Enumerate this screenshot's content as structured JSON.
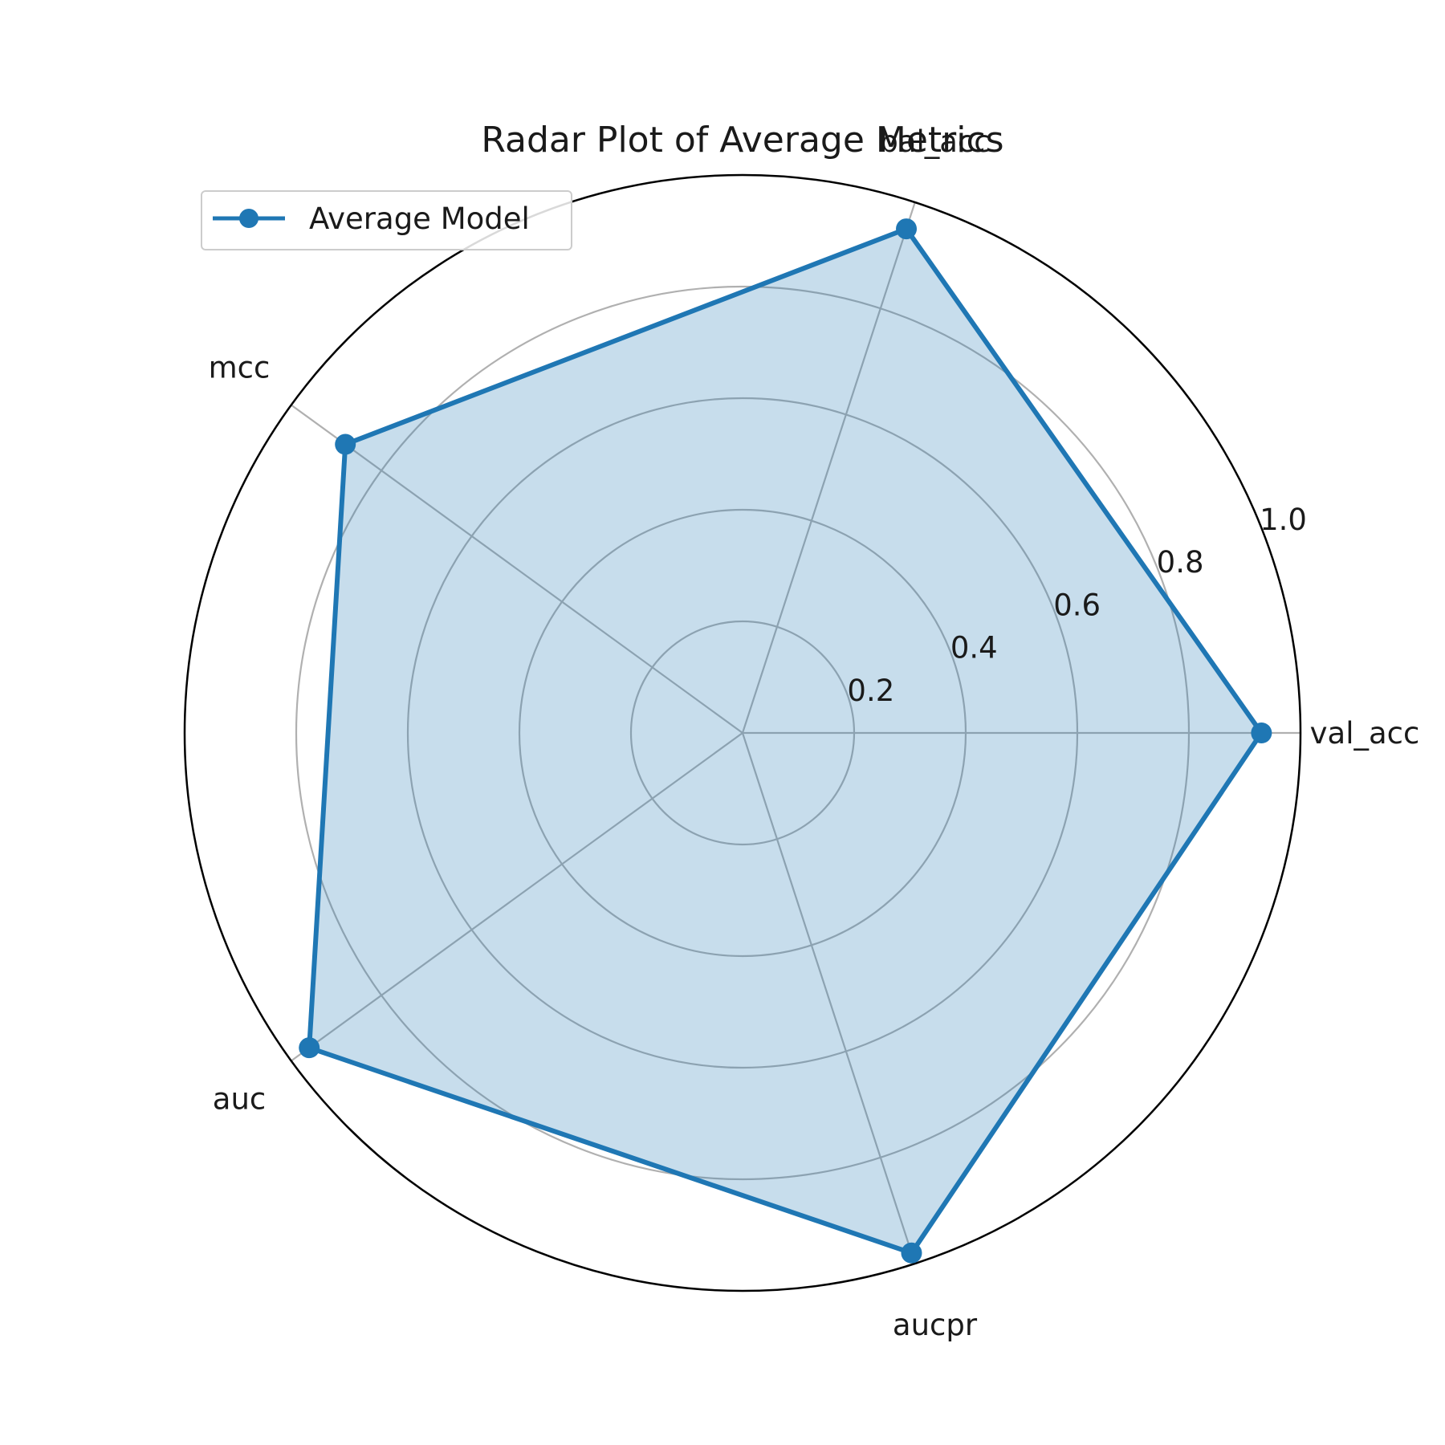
{
  "chart_data": {
    "type": "radar",
    "title": "Radar Plot of Average Metrics",
    "categories": [
      "val_acc",
      "bal_acc",
      "mcc",
      "auc",
      "aucpr"
    ],
    "series": [
      {
        "name": "Average Model",
        "values": [
          0.93,
          0.95,
          0.88,
          0.96,
          0.98
        ]
      }
    ],
    "rlim": [
      0,
      1.0
    ],
    "rticks": [
      0.2,
      0.4,
      0.6,
      0.8,
      1.0
    ],
    "rtick_labels": [
      "0.2",
      "0.4",
      "0.6",
      "0.8",
      "1.0"
    ],
    "grid": true,
    "legend_position": "upper-left",
    "colors": {
      "series": "#1f77b4",
      "fill": "#1f77b4",
      "grid": "#b0b0b0",
      "frame": "#000000"
    }
  }
}
